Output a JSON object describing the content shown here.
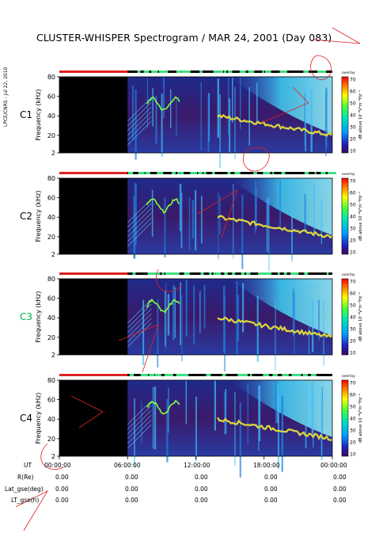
{
  "title": "CLUSTER-WHISPER Spectrogram / MAR 24, 2001 (Day 083)",
  "credit": "LPCE/CNRS - Jul 22, 2010",
  "chart_data": {
    "type": "heatmap",
    "ylabel": "Frequency (kHz)",
    "yticks": [
      "80",
      "60",
      "40",
      "20",
      "2"
    ],
    "ylim": [
      2,
      80
    ],
    "xlabel": "UT",
    "xticks": [
      "00:00:00",
      "06:00:00",
      "12:00:00",
      "18:00:00",
      "00:00:00"
    ],
    "colorbar": {
      "ticks": [
        "70",
        "60",
        "50",
        "40",
        "30",
        "20",
        "10"
      ],
      "label": "dB above 10⁻⁸V²m⁻²Hz⁻¹",
      "range": [
        10,
        70
      ],
      "corner_label": "overlay"
    },
    "panels": [
      {
        "name": "C1",
        "color": "#000000"
      },
      {
        "name": "C2",
        "color": "#000000"
      },
      {
        "name": "C3",
        "color": "#00b050"
      },
      {
        "name": "C4",
        "color": "#000000"
      }
    ],
    "no_data_interval_ut": [
      "00:00:00",
      "06:00:00"
    ]
  },
  "ephemeris": {
    "rows": [
      {
        "label": "R(Re)",
        "values": [
          "0.00",
          "0.00",
          "0.00",
          "0.00",
          "0.00"
        ]
      },
      {
        "label": "Lat_gse(deg)",
        "values": [
          "0.00",
          "0.00",
          "0.00",
          "0.00",
          "0.00"
        ]
      },
      {
        "label": "LT_gse(h)",
        "values": [
          "0.00",
          "0.00",
          "0.00",
          "0.00",
          "0.00"
        ]
      }
    ]
  },
  "colors": {
    "background_panel": "#22307a",
    "no_data": "#000000",
    "mode_bar_off": "#e02020",
    "mode_bar_on": "#000000",
    "mode_bar_accent": "#40e080",
    "watermark": "#e02020"
  }
}
